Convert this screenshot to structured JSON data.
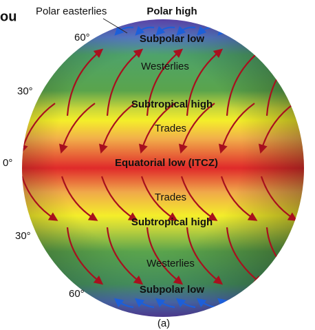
{
  "corner_text": "ou",
  "top": {
    "polar_easterlies": "Polar easterlies",
    "polar_high": "Polar high"
  },
  "latitudes": {
    "north_60": "60°",
    "north_30": "30°",
    "equator": "0°",
    "south_30": "30°",
    "south_60": "60°"
  },
  "zones": {
    "north_subpolar_low": "Subpolar low",
    "north_westerlies": "Westerlies",
    "north_subtropical_high": "Subtropical high",
    "north_trades": "Trades",
    "equatorial_low": "Equatorial low (ITCZ)",
    "south_trades": "Trades",
    "south_subtropical_high": "Subtropical high",
    "south_westerlies": "Westerlies",
    "south_subpolar_low": "Subpolar low"
  },
  "caption": "(a)"
}
